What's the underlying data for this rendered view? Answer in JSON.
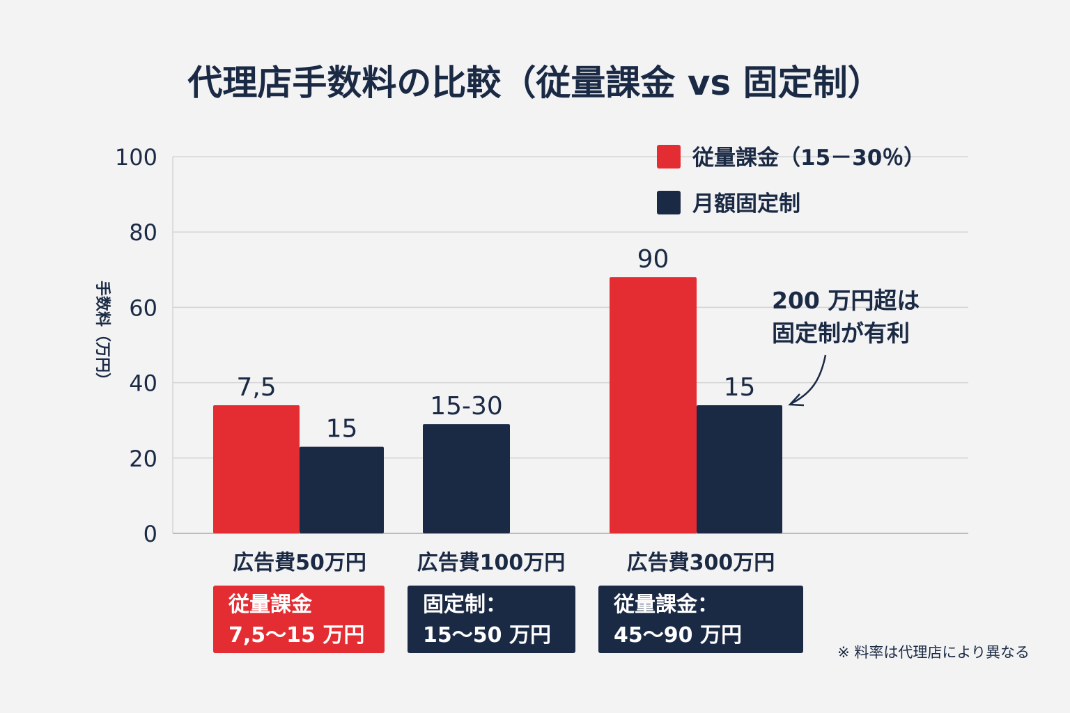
{
  "chart_data": {
    "type": "bar",
    "title": "代理店手数料の比較（従量課金 vs 固定制）",
    "ylabel": "手数料（万円）",
    "ylim": [
      0,
      100
    ],
    "yticks": [
      0,
      20,
      40,
      60,
      80,
      100
    ],
    "grid": true,
    "legend_position": "top-right",
    "categories": [
      "広告費50万円",
      "広告費100万円",
      "広告費300万円"
    ],
    "series": [
      {
        "name": "従量課金（15－30％）",
        "color": "#e32d33",
        "values": [
          34,
          null,
          68
        ],
        "labels": [
          "7,5",
          "",
          "90"
        ]
      },
      {
        "name": "月額固定制",
        "color": "#1b2a44",
        "values": [
          23,
          29,
          34
        ],
        "labels": [
          "15",
          "15-30",
          "15"
        ]
      }
    ],
    "annotation": {
      "line1": "200 万円超は",
      "line2": "固定制が有利"
    },
    "summary_boxes": [
      {
        "line1": "従量課金",
        "line2": "7,5～15 万円",
        "color": "#e32d33"
      },
      {
        "line1": "固定制：",
        "line2": "15～50 万円",
        "color": "#1b2a44"
      },
      {
        "line1": "従量課金：",
        "line2": "45～90 万円",
        "color": "#1b2a44"
      }
    ],
    "note": "※ 料率は代理店により異なる"
  }
}
